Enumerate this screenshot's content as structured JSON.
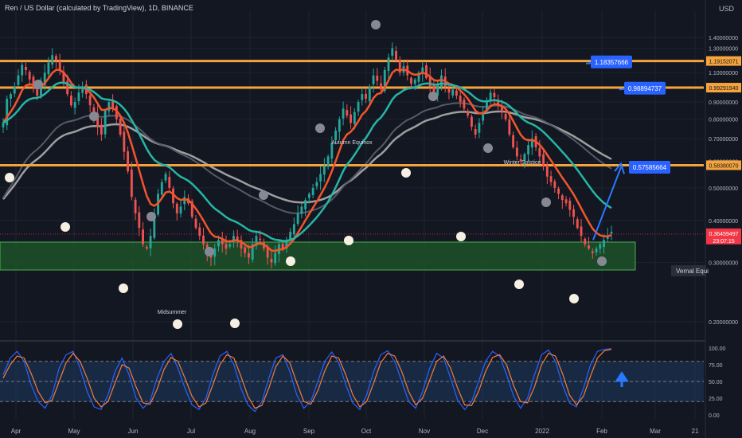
{
  "header": {
    "title": "Ren / US Dollar (calculated by TradingView), 1D, BINANCE",
    "currency": "USD"
  },
  "colors": {
    "background": "#131722",
    "grid": "#1f2330",
    "horizontal_level": "#f5a33c",
    "support_zone": "#1f5a2a",
    "support_zone_border": "#4caf50",
    "candle_up": "#26a69a",
    "candle_down": "#ef5350",
    "ma_red": "#f2552c",
    "ma_teal": "#26b5a4",
    "ma_gray": "#9e9e9e",
    "ma_dark_gray": "#555a66",
    "label_blue": "#2962ff",
    "arrow_blue": "#2979ff",
    "price_tag_red": "#f23645",
    "stoch_k": "#2962ff",
    "stoch_d": "#f57c3a",
    "stoch_band": "#1e3a5f"
  },
  "chart_data": [
    {
      "type": "candlestick",
      "ylabel": "USD",
      "ylim": [
        0.16,
        1.55
      ],
      "y_scale": "log",
      "y_ticks": [
        "1.40000000",
        "1.30000000",
        "1.20000000",
        "1.10000000",
        "1.00000000",
        "0.90000000",
        "0.80000000",
        "0.70000000",
        "0.60000000",
        "0.50000000",
        "0.40000000",
        "0.30000000",
        "0.20000000"
      ],
      "x_ticks": [
        "Apr",
        "May",
        "Jun",
        "Jul",
        "Aug",
        "Sep",
        "Oct",
        "Nov",
        "Dec",
        "2022",
        "Feb",
        "Mar",
        "21"
      ],
      "horizontal_levels": [
        1.19152071,
        0.9929194,
        0.5838007
      ],
      "level_labels": [
        "1.19152071",
        "0.99291940",
        "0.58380070"
      ],
      "callouts": [
        {
          "text": "1.18357666",
          "value": 1.18357666
        },
        {
          "text": "0.98894737",
          "value": 0.98894737
        },
        {
          "text": "0.57585664",
          "value": 0.57585664
        }
      ],
      "support_zone": [
        0.285,
        0.345
      ],
      "current_price": {
        "value": "0.36459497",
        "countdown": "23:07:15"
      },
      "vernal_label": "Vernal Equi",
      "annotations": [
        "Midsummer",
        "Autumn Equinox",
        "Winter Solstice"
      ],
      "close_series": [
        0.78,
        0.92,
        0.95,
        1.0,
        1.08,
        1.16,
        1.12,
        1.05,
        0.99,
        0.94,
        1.02,
        1.1,
        1.18,
        1.24,
        1.2,
        1.12,
        1.03,
        0.95,
        0.88,
        0.9,
        0.96,
        1.0,
        0.95,
        0.88,
        0.82,
        0.76,
        0.72,
        0.85,
        0.9,
        0.86,
        0.8,
        0.72,
        0.64,
        0.56,
        0.47,
        0.42,
        0.38,
        0.34,
        0.33,
        0.36,
        0.42,
        0.48,
        0.52,
        0.55,
        0.5,
        0.45,
        0.42,
        0.44,
        0.47,
        0.45,
        0.41,
        0.38,
        0.36,
        0.34,
        0.32,
        0.31,
        0.33,
        0.35,
        0.34,
        0.33,
        0.34,
        0.36,
        0.35,
        0.33,
        0.32,
        0.31,
        0.34,
        0.36,
        0.35,
        0.33,
        0.31,
        0.3,
        0.32,
        0.34,
        0.33,
        0.35,
        0.37,
        0.39,
        0.42,
        0.44,
        0.46,
        0.48,
        0.5,
        0.52,
        0.55,
        0.58,
        0.62,
        0.68,
        0.74,
        0.8,
        0.86,
        0.82,
        0.78,
        0.84,
        0.9,
        0.95,
        0.92,
        1.0,
        1.08,
        1.04,
        0.98,
        1.12,
        1.22,
        1.3,
        1.2,
        1.1,
        1.15,
        1.08,
        1.02,
        1.05,
        1.1,
        1.14,
        1.06,
        1.0,
        0.96,
        1.02,
        1.08,
        1.0,
        0.96,
        0.98,
        0.94,
        0.9,
        0.86,
        0.82,
        0.76,
        0.72,
        0.78,
        0.84,
        0.9,
        0.96,
        0.93,
        0.88,
        0.84,
        0.8,
        0.72,
        0.66,
        0.62,
        0.6,
        0.63,
        0.67,
        0.7,
        0.66,
        0.62,
        0.58,
        0.54,
        0.52,
        0.5,
        0.48,
        0.46,
        0.45,
        0.43,
        0.41,
        0.38,
        0.36,
        0.34,
        0.33,
        0.32,
        0.33,
        0.34,
        0.35,
        0.36,
        0.37
      ],
      "moving_averages": [
        "red",
        "teal",
        "gray",
        "dark-gray"
      ]
    },
    {
      "type": "line",
      "ylim": [
        0,
        100
      ],
      "y_ticks": [
        "100.00",
        "75.00",
        "50.00",
        "25.00",
        "0.00"
      ],
      "band": [
        20,
        80
      ],
      "series": [
        {
          "values": [
            60,
            85,
            95,
            80,
            45,
            20,
            10,
            30,
            70,
            90,
            95,
            70,
            35,
            12,
            8,
            30,
            65,
            85,
            60,
            25,
            10,
            20,
            55,
            80,
            92,
            70,
            40,
            15,
            8,
            25,
            60,
            88,
            95,
            75,
            40,
            15,
            5,
            20,
            55,
            85,
            90,
            65,
            30,
            10,
            20,
            50,
            80,
            94,
            78,
            45,
            18,
            8,
            30,
            65,
            90,
            96,
            80,
            50,
            20,
            10,
            35,
            70,
            92,
            85,
            55,
            22,
            8,
            20,
            50,
            80,
            95,
            88,
            60,
            28,
            10,
            25,
            60,
            90,
            97,
            80,
            45,
            18,
            12,
            40,
            75,
            95,
            98,
            99
          ]
        },
        {
          "values": [
            55,
            75,
            88,
            85,
            62,
            35,
            18,
            22,
            50,
            78,
            92,
            80,
            55,
            25,
            12,
            20,
            48,
            75,
            70,
            42,
            18,
            16,
            38,
            68,
            86,
            80,
            55,
            28,
            12,
            18,
            45,
            75,
            90,
            85,
            58,
            28,
            10,
            14,
            40,
            72,
            88,
            78,
            48,
            20,
            16,
            36,
            66,
            88,
            85,
            60,
            30,
            12,
            20,
            48,
            78,
            92,
            88,
            65,
            35,
            15,
            25,
            52,
            80,
            88,
            70,
            40,
            15,
            14,
            35,
            65,
            86,
            90,
            75,
            44,
            20,
            18,
            42,
            75,
            92,
            88,
            62,
            30,
            15,
            28,
            58,
            85,
            96,
            98
          ]
        }
      ]
    }
  ]
}
